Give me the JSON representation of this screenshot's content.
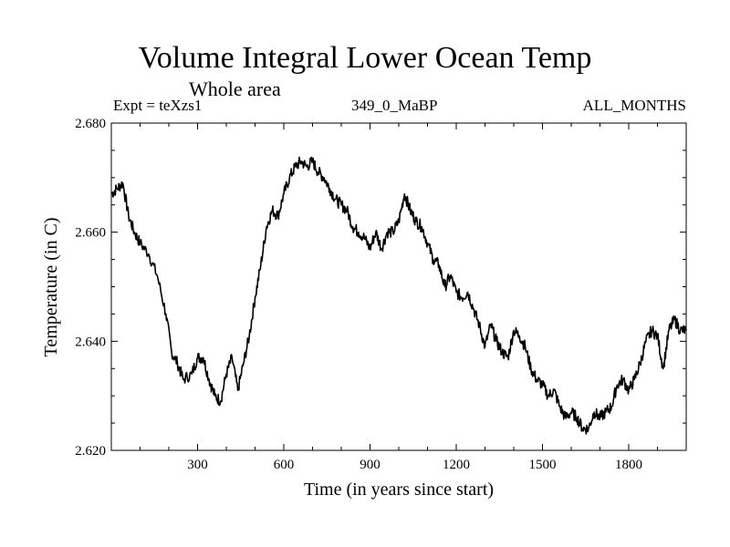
{
  "chart_data": {
    "type": "line",
    "title": "Volume Integral Lower Ocean Temp",
    "subtitle": "Whole area",
    "header_left": "Expt = teXzs1",
    "header_center": "349_0_MaBP",
    "header_right": "ALL_MONTHS",
    "xlabel": "Time (in years since start)",
    "ylabel": "Temperature (in C)",
    "xlim": [
      0,
      2000
    ],
    "ylim": [
      2.62,
      2.68
    ],
    "xticks": [
      300,
      600,
      900,
      1200,
      1500,
      1800
    ],
    "xtick_labels": [
      "300",
      "600",
      "900",
      "1200",
      "1500",
      "1800"
    ],
    "yticks": [
      2.62,
      2.64,
      2.66,
      2.68
    ],
    "ytick_labels": [
      "2.620",
      "2.640",
      "2.660",
      "2.680"
    ],
    "grid": false,
    "series": [
      {
        "name": "teXzs1",
        "color": "#000000",
        "x": [
          0,
          20,
          40,
          60,
          80,
          100,
          130,
          160,
          190,
          210,
          230,
          250,
          280,
          300,
          320,
          340,
          360,
          380,
          400,
          420,
          440,
          460,
          480,
          500,
          520,
          540,
          560,
          580,
          600,
          620,
          640,
          660,
          680,
          700,
          720,
          740,
          760,
          780,
          800,
          820,
          840,
          860,
          880,
          900,
          920,
          940,
          960,
          980,
          1000,
          1020,
          1040,
          1060,
          1080,
          1100,
          1120,
          1140,
          1160,
          1180,
          1200,
          1220,
          1240,
          1260,
          1280,
          1300,
          1320,
          1340,
          1360,
          1380,
          1400,
          1420,
          1440,
          1460,
          1480,
          1500,
          1520,
          1540,
          1560,
          1580,
          1600,
          1620,
          1640,
          1660,
          1680,
          1700,
          1720,
          1740,
          1760,
          1780,
          1800,
          1820,
          1840,
          1860,
          1880,
          1900,
          1920,
          1940,
          1960,
          1980,
          2000
        ],
        "y": [
          2.667,
          2.668,
          2.669,
          2.663,
          2.66,
          2.658,
          2.656,
          2.652,
          2.645,
          2.638,
          2.636,
          2.633,
          2.634,
          2.637,
          2.637,
          2.633,
          2.63,
          2.629,
          2.634,
          2.637,
          2.631,
          2.636,
          2.641,
          2.648,
          2.654,
          2.661,
          2.664,
          2.663,
          2.667,
          2.67,
          2.672,
          2.673,
          2.672,
          2.673,
          2.671,
          2.67,
          2.668,
          2.666,
          2.665,
          2.664,
          2.661,
          2.66,
          2.659,
          2.657,
          2.66,
          2.657,
          2.66,
          2.66,
          2.662,
          2.667,
          2.664,
          2.662,
          2.661,
          2.658,
          2.655,
          2.654,
          2.65,
          2.652,
          2.649,
          2.648,
          2.649,
          2.646,
          2.643,
          2.639,
          2.643,
          2.64,
          2.638,
          2.637,
          2.642,
          2.641,
          2.639,
          2.635,
          2.633,
          2.632,
          2.63,
          2.631,
          2.628,
          2.626,
          2.627,
          2.626,
          2.624,
          2.624,
          2.627,
          2.626,
          2.627,
          2.628,
          2.632,
          2.633,
          2.631,
          2.633,
          2.636,
          2.64,
          2.642,
          2.641,
          2.635,
          2.642,
          2.644,
          2.642,
          2.642
        ]
      }
    ]
  }
}
